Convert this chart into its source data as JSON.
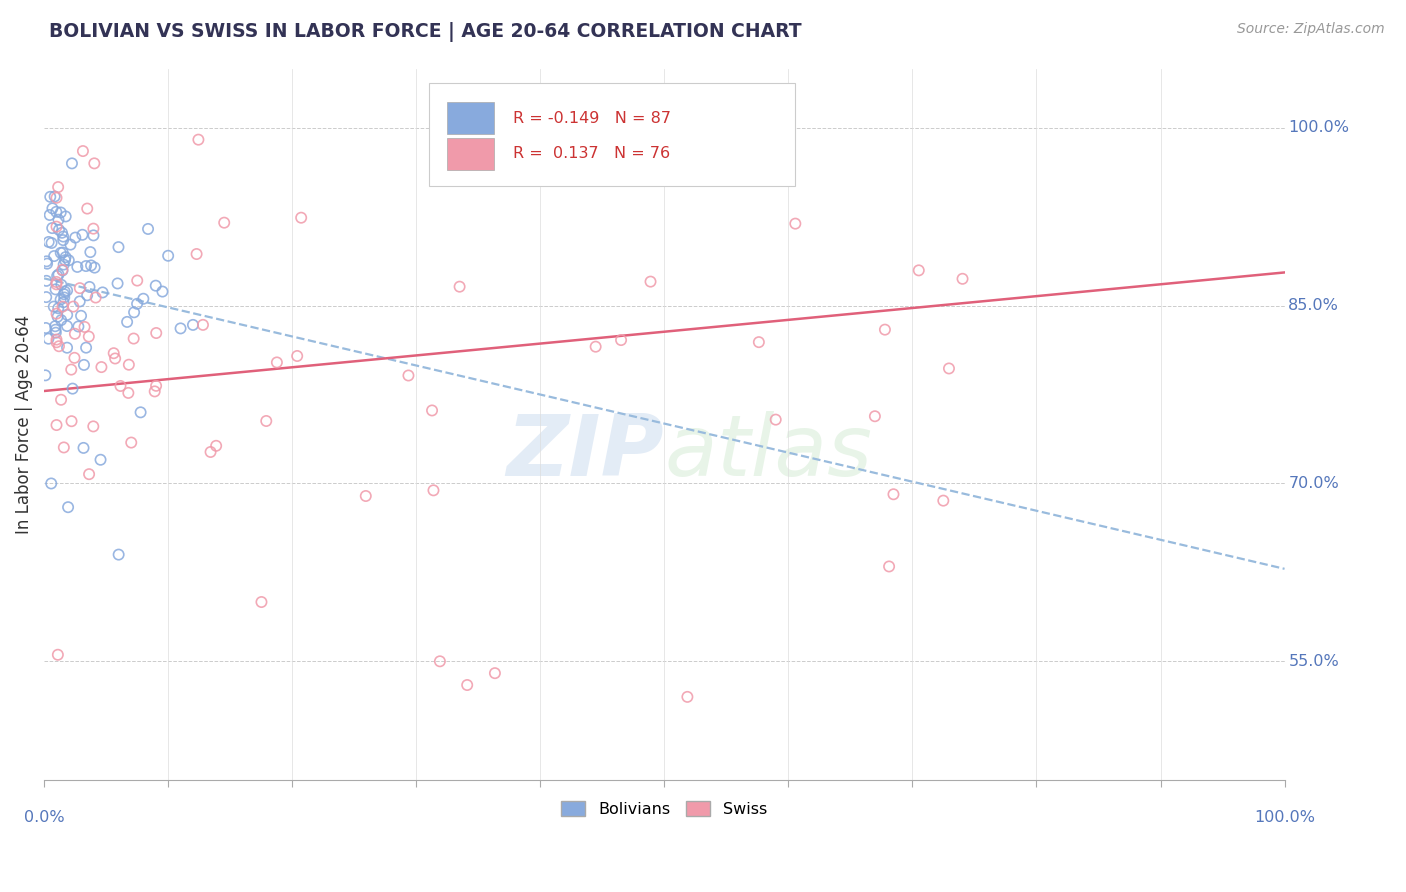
{
  "title": "BOLIVIAN VS SWISS IN LABOR FORCE | AGE 20-64 CORRELATION CHART",
  "source_text": "Source: ZipAtlas.com",
  "ylabel": "In Labor Force | Age 20-64",
  "xlim": [
    0.0,
    1.0
  ],
  "ylim": [
    0.45,
    1.05
  ],
  "ytick_vals": [
    0.55,
    0.7,
    0.85,
    1.0
  ],
  "ytick_labels": [
    "55.0%",
    "70.0%",
    "85.0%",
    "100.0%"
  ],
  "color_bolivian": "#88aadd",
  "color_swiss": "#f09aaa",
  "color_trend_bolivian": "#99bbdd",
  "color_trend_swiss": "#e0607a",
  "watermark": "ZIPatlas",
  "title_color": "#333355",
  "label_color": "#5577bb",
  "legend_r_bolivian": "-0.149",
  "legend_n_bolivian": "87",
  "legend_r_swiss": "0.137",
  "legend_n_swiss": "76",
  "trend_bolivian_y0": 0.873,
  "trend_bolivian_y1": 0.628,
  "trend_swiss_y0": 0.778,
  "trend_swiss_y1": 0.878
}
